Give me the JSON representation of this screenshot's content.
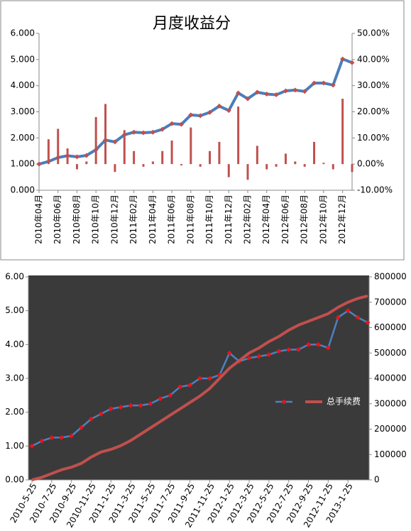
{
  "chart_data": [
    {
      "type": "combo",
      "title": "月度收益分",
      "categories": [
        "2010年04月",
        null,
        "2010年06月",
        null,
        "2010年08月",
        null,
        "2010年10月",
        null,
        "2010年12月",
        null,
        "2011年02月",
        null,
        "2011年04月",
        null,
        "2011年06月",
        null,
        "2011年08月",
        null,
        "2011年10月",
        null,
        "2011年12月",
        null,
        "2012年02月",
        null,
        "2012年04月",
        null,
        "2012年06月",
        null,
        "2012年08月",
        null,
        "2012年10月",
        null,
        "2012年12月",
        null
      ],
      "series": [
        {
          "type": "line",
          "color": "#4a7ebb",
          "marker_color": "#c0504d",
          "values": [
            1.0,
            1.1,
            1.25,
            1.32,
            1.28,
            1.33,
            1.55,
            1.92,
            1.85,
            2.12,
            2.22,
            2.2,
            2.22,
            2.33,
            2.55,
            2.52,
            2.88,
            2.85,
            2.98,
            3.22,
            3.05,
            3.72,
            3.5,
            3.75,
            3.68,
            3.65,
            3.8,
            3.83,
            3.78,
            4.1,
            4.1,
            4.02,
            5.02,
            4.88
          ]
        },
        {
          "type": "bar",
          "axis": "y2",
          "color": "#c0504d",
          "values": [
            0,
            9.5,
            13.5,
            6,
            -2,
            1,
            18,
            23,
            -3,
            13,
            5,
            -1,
            1,
            5,
            9,
            -0.5,
            14,
            -1,
            5,
            8.5,
            -5,
            22,
            -6,
            7,
            -2,
            -1,
            4,
            1,
            -1,
            8.5,
            0.5,
            -2,
            25,
            -3
          ]
        }
      ],
      "ylim": [
        0,
        6
      ],
      "yticks": [
        {
          "value": 0,
          "label": "0.000"
        },
        {
          "value": 1,
          "label": "1.000"
        },
        {
          "value": 2,
          "label": "2.000"
        },
        {
          "value": 3,
          "label": "3.000"
        },
        {
          "value": 4,
          "label": "4.000"
        },
        {
          "value": 5,
          "label": "5.000"
        },
        {
          "value": 6,
          "label": "6.000"
        }
      ],
      "y2lim": [
        -10,
        50
      ],
      "y2ticks": [
        {
          "value": -10,
          "label": "-10.00%"
        },
        {
          "value": 0,
          "label": "0.00%"
        },
        {
          "value": 10,
          "label": "10.00%"
        },
        {
          "value": 20,
          "label": "20.00%"
        },
        {
          "value": 30,
          "label": "30.00%"
        },
        {
          "value": 40,
          "label": "40.00%"
        },
        {
          "value": 50,
          "label": "50.00%"
        }
      ]
    },
    {
      "type": "line",
      "categories": [
        "2010-5-25",
        null,
        "2010-7-25",
        null,
        "2010-9-25",
        null,
        "2010-11-25",
        null,
        "2011-1-25",
        null,
        "2011-3-25",
        null,
        "2011-5-25",
        null,
        "2011-7-25",
        null,
        "2011-9-25",
        null,
        "2011-11-25",
        null,
        "2012-1-25",
        null,
        "2012-3-25",
        null,
        "2012-5-25",
        null,
        "2012-7-25",
        null,
        "2012-9-25",
        null,
        "2012-11-25",
        null,
        "2013-1-25",
        null,
        null
      ],
      "series": [
        {
          "color": "#4f81bd",
          "marker_color": "#e8141b",
          "values": [
            1.0,
            1.15,
            1.25,
            1.25,
            1.3,
            1.55,
            1.8,
            1.95,
            2.1,
            2.15,
            2.2,
            2.2,
            2.25,
            2.4,
            2.5,
            2.75,
            2.8,
            3.0,
            3.0,
            3.1,
            3.75,
            3.5,
            3.6,
            3.65,
            3.7,
            3.8,
            3.85,
            3.85,
            4.0,
            4.0,
            3.9,
            4.8,
            5.0,
            4.8,
            4.65
          ]
        },
        {
          "name": "总手续费",
          "axis": "y2",
          "color": "#c0504d",
          "values": [
            0,
            10000,
            25000,
            40000,
            50000,
            65000,
            90000,
            110000,
            120000,
            135000,
            155000,
            180000,
            205000,
            230000,
            255000,
            280000,
            305000,
            330000,
            360000,
            400000,
            440000,
            470000,
            500000,
            520000,
            545000,
            565000,
            590000,
            610000,
            625000,
            640000,
            655000,
            680000,
            700000,
            715000,
            725000
          ]
        }
      ],
      "ylim": [
        0,
        6
      ],
      "yticks": [
        {
          "value": 0,
          "label": "0.00"
        },
        {
          "value": 1,
          "label": "1.00"
        },
        {
          "value": 2,
          "label": "2.00"
        },
        {
          "value": 3,
          "label": "3.00"
        },
        {
          "value": 4,
          "label": "4.00"
        },
        {
          "value": 5,
          "label": "5.00"
        },
        {
          "value": 6,
          "label": "6.00"
        }
      ],
      "y2lim": [
        0,
        800000
      ],
      "y2ticks": [
        0,
        100000,
        200000,
        300000,
        400000,
        500000,
        600000,
        700000,
        800000
      ],
      "legend": "center-right"
    }
  ]
}
